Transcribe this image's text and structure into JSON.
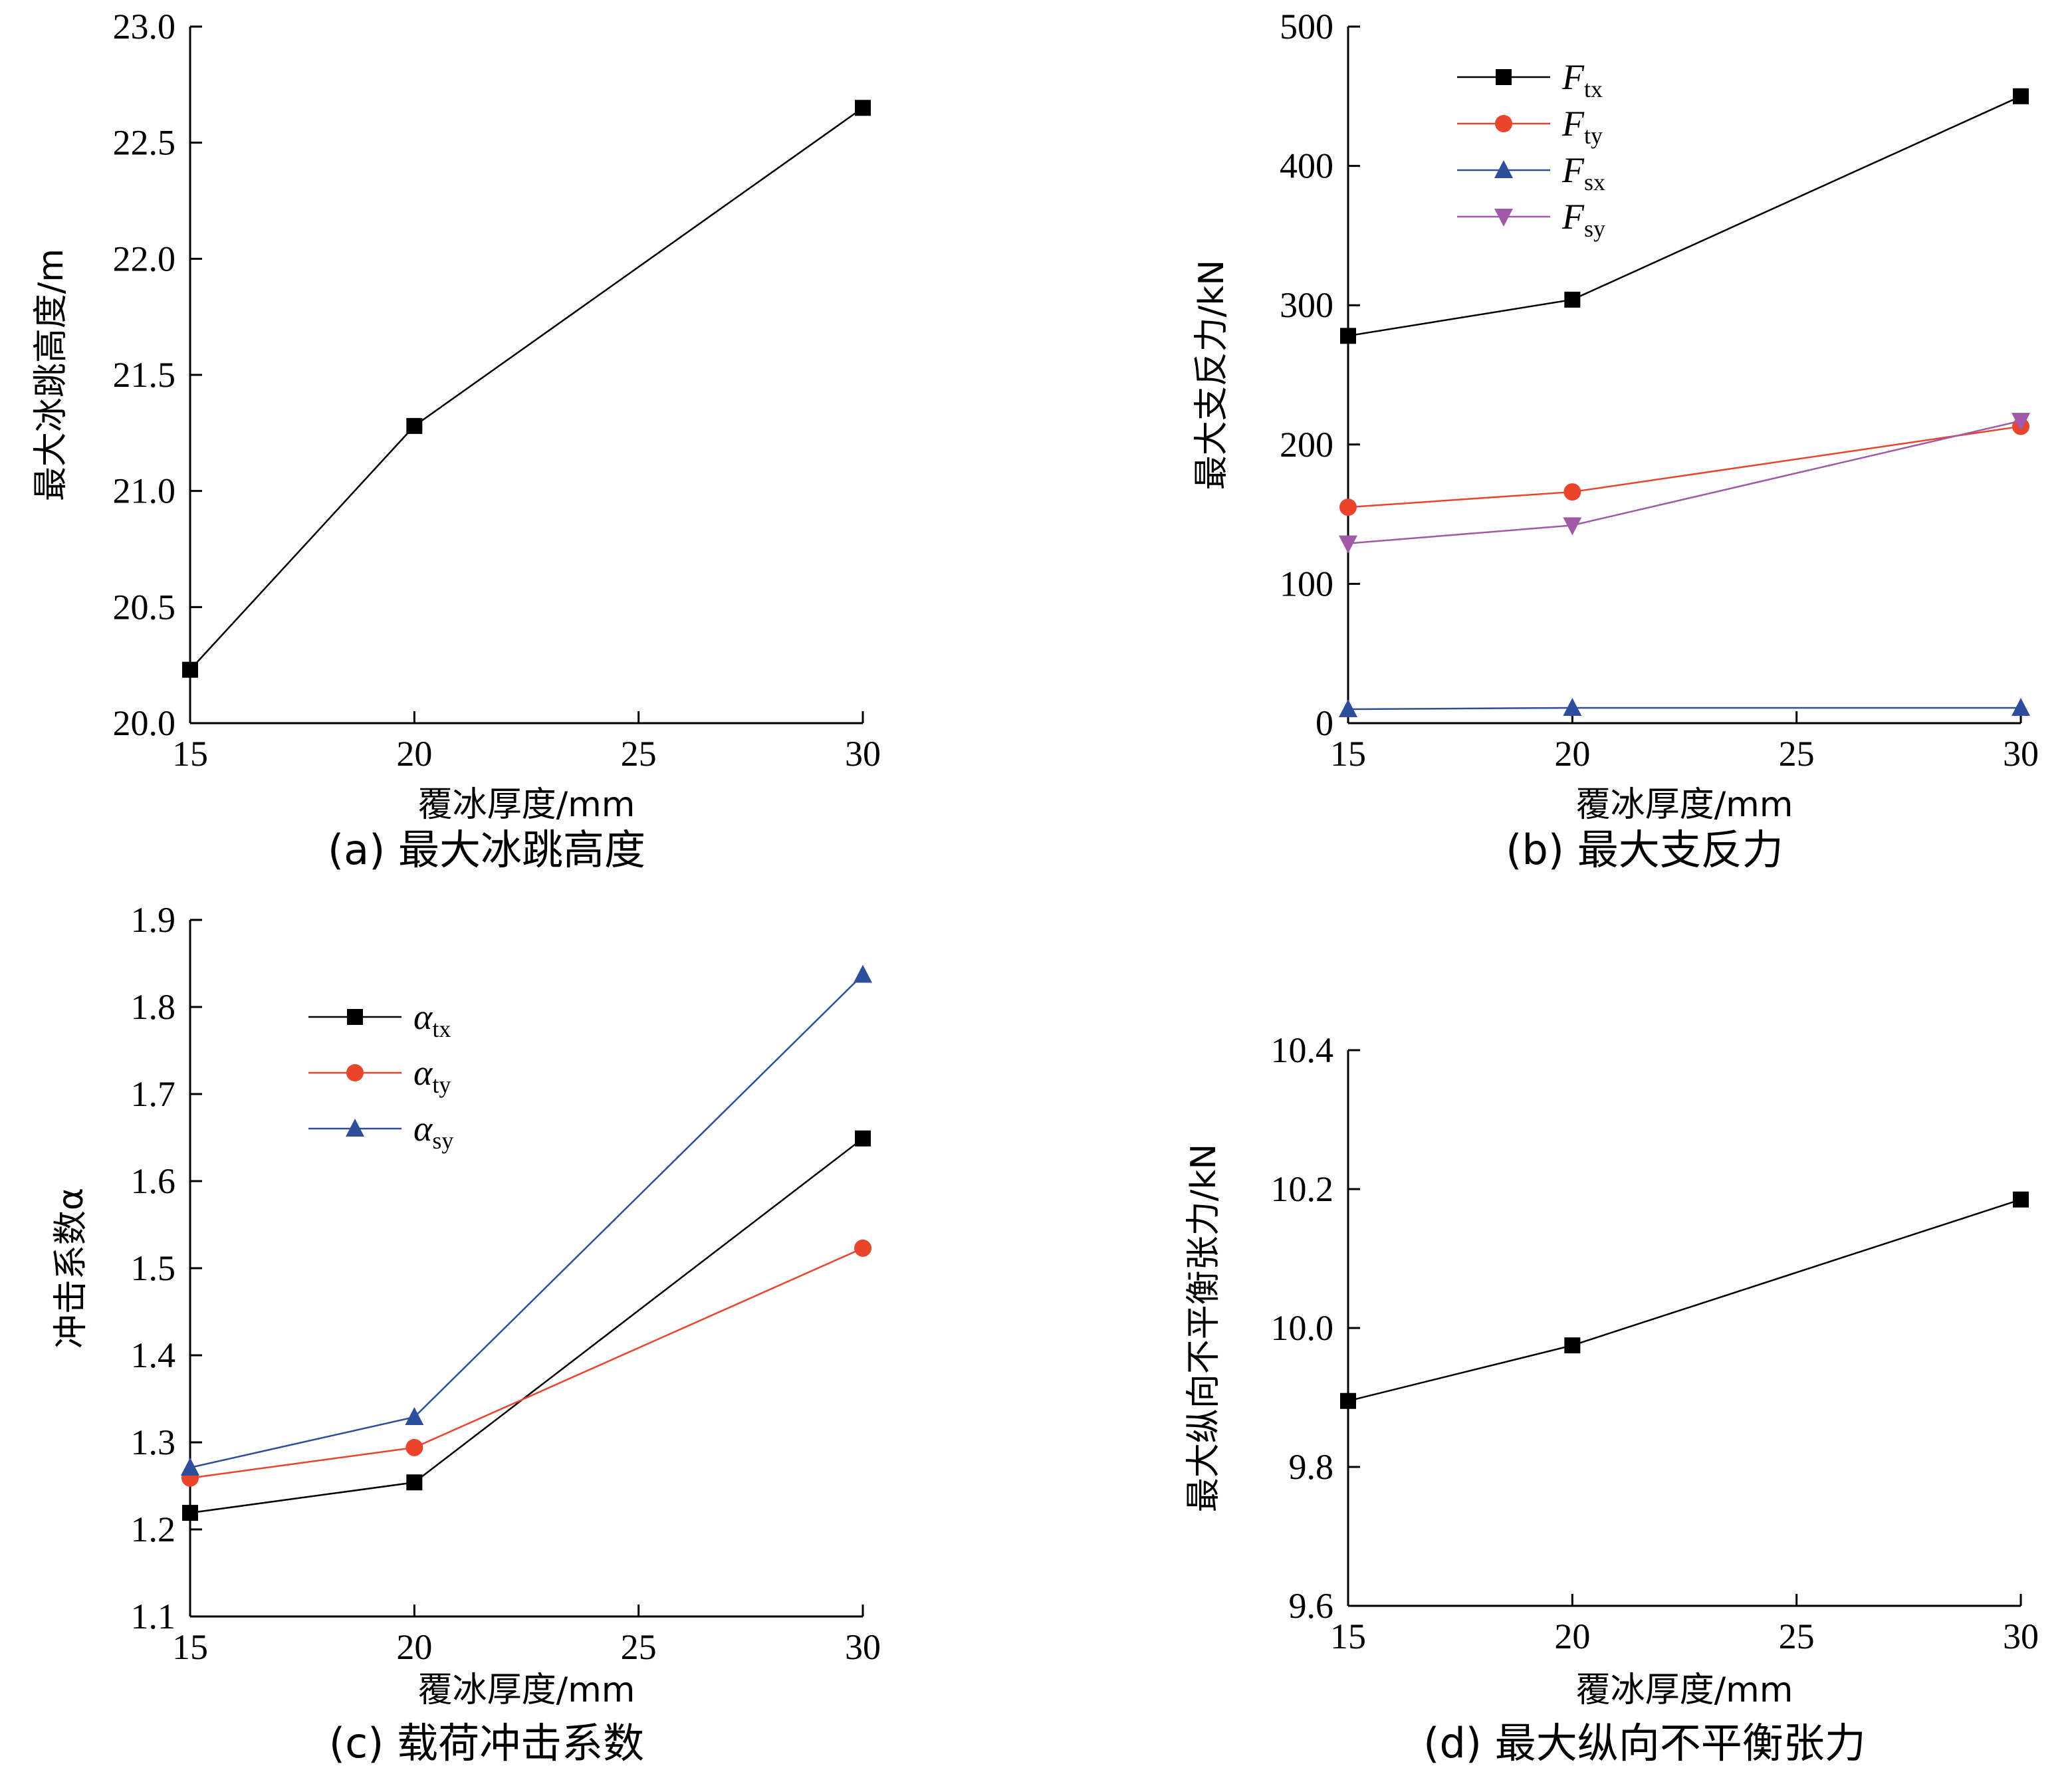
{
  "chart_data": [
    {
      "id": "a",
      "type": "line",
      "caption": "(a) 最大冰跳高度",
      "xlabel": "覆冰厚度/mm",
      "ylabel": "最大冰跳高度/m",
      "xlim": [
        15,
        30
      ],
      "ylim": [
        20.0,
        23.0
      ],
      "xticks": [
        15,
        20,
        25,
        30
      ],
      "yticks": [
        20.0,
        20.5,
        21.0,
        21.5,
        22.0,
        22.5,
        23.0
      ],
      "ytick_labels": [
        "20.0",
        "20.5",
        "21.0",
        "21.5",
        "22.0",
        "22.5",
        "23.0"
      ],
      "x": [
        15,
        20,
        30
      ],
      "series": [
        {
          "name": "",
          "marker": "square",
          "color": "#000000",
          "values": [
            20.23,
            21.28,
            22.65
          ]
        }
      ],
      "legend": false
    },
    {
      "id": "b",
      "type": "line",
      "caption": "(b) 最大支反力",
      "xlabel": "覆冰厚度/mm",
      "ylabel": "最大支反力/kN",
      "xlim": [
        15,
        30
      ],
      "ylim": [
        0,
        500
      ],
      "xticks": [
        15,
        20,
        25,
        30
      ],
      "yticks": [
        0,
        100,
        200,
        300,
        400,
        500
      ],
      "ytick_labels": [
        "0",
        "100",
        "200",
        "300",
        "400",
        "500"
      ],
      "x": [
        15,
        20,
        30
      ],
      "series": [
        {
          "name": "F",
          "sub": "tx",
          "marker": "square",
          "color": "#000000",
          "values": [
            278,
            304,
            450
          ]
        },
        {
          "name": "F",
          "sub": "ty",
          "marker": "circle",
          "color": "#e8452c",
          "values": [
            155,
            166,
            213
          ]
        },
        {
          "name": "F",
          "sub": "sx",
          "marker": "triangle",
          "color": "#2e4d9b",
          "values": [
            10,
            11,
            11
          ]
        },
        {
          "name": "F",
          "sub": "sy",
          "marker": "triangle-down",
          "color": "#a05aa8",
          "values": [
            129,
            142,
            217
          ]
        }
      ],
      "legend": true
    },
    {
      "id": "c",
      "type": "line",
      "caption": "(c) 载荷冲击系数",
      "xlabel": "覆冰厚度/mm",
      "ylabel": "冲击系数α",
      "xlim": [
        15,
        30
      ],
      "ylim": [
        1.1,
        1.9
      ],
      "xticks": [
        15,
        20,
        25,
        30
      ],
      "yticks": [
        1.1,
        1.2,
        1.3,
        1.4,
        1.5,
        1.6,
        1.7,
        1.8,
        1.9
      ],
      "ytick_labels": [
        "1.1",
        "1.2",
        "1.3",
        "1.4",
        "1.5",
        "1.6",
        "1.7",
        "1.8",
        "1.9"
      ],
      "x": [
        15,
        20,
        30
      ],
      "series": [
        {
          "name": "α",
          "sub": "tx",
          "marker": "square",
          "color": "#000000",
          "values": [
            1.219,
            1.254,
            1.649
          ]
        },
        {
          "name": "α",
          "sub": "ty",
          "marker": "circle",
          "color": "#e8452c",
          "values": [
            1.259,
            1.294,
            1.523
          ]
        },
        {
          "name": "α",
          "sub": "sy",
          "marker": "triangle",
          "color": "#2e4d9b",
          "values": [
            1.271,
            1.329,
            1.837
          ]
        }
      ],
      "legend": true
    },
    {
      "id": "d",
      "type": "line",
      "caption": "(d) 最大纵向不平衡张力",
      "xlabel": "覆冰厚度/mm",
      "ylabel": "最大纵向不平衡张力/kN",
      "xlim": [
        15,
        30
      ],
      "ylim": [
        9.6,
        10.4
      ],
      "xticks": [
        15,
        20,
        25,
        30
      ],
      "yticks": [
        9.6,
        9.8,
        10.0,
        10.2,
        10.4
      ],
      "ytick_labels": [
        "9.6",
        "9.8",
        "10.0",
        "10.2",
        "10.4"
      ],
      "x": [
        15,
        20,
        30
      ],
      "series": [
        {
          "name": "",
          "marker": "square",
          "color": "#000000",
          "values": [
            9.895,
            9.975,
            10.185
          ]
        }
      ],
      "legend": false
    }
  ]
}
